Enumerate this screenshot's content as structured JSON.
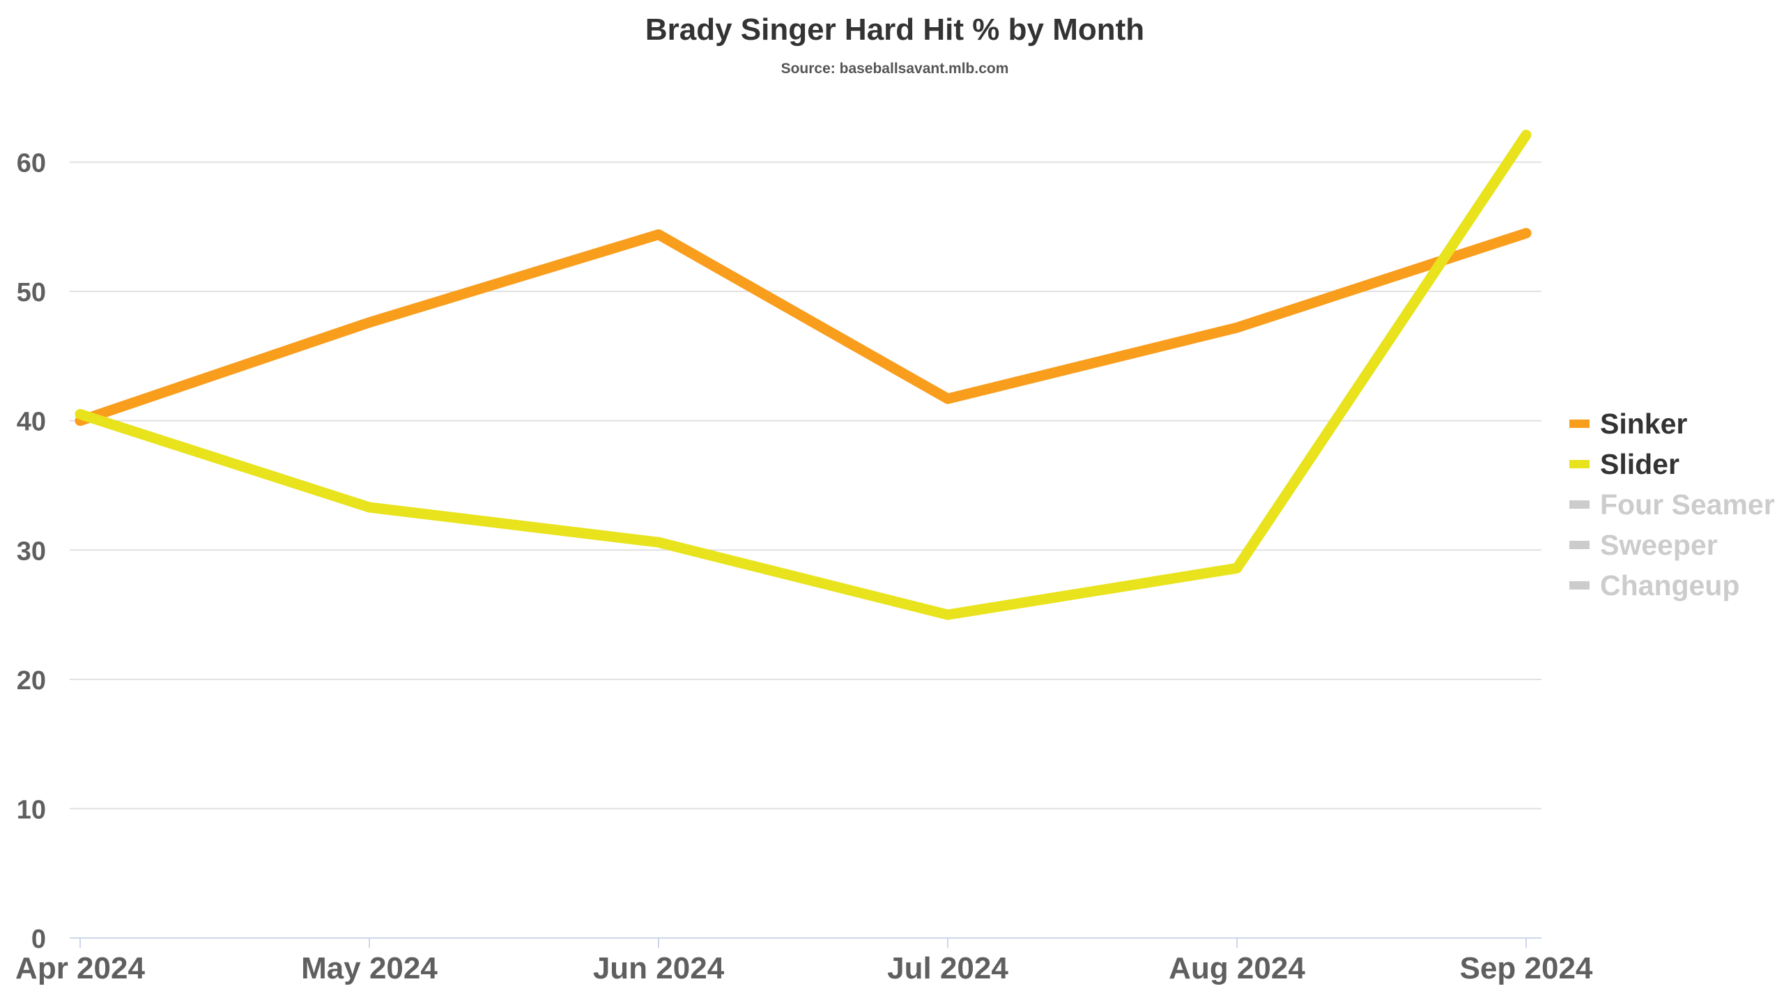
{
  "chart_data": {
    "type": "line",
    "title": "Brady Singer Hard Hit % by Month",
    "subtitle": "Source: baseballsavant.mlb.com",
    "xlabel": "",
    "ylabel": "",
    "categories": [
      "Apr 2024",
      "May 2024",
      "Jun 2024",
      "Jul 2024",
      "Aug 2024",
      "Sep 2024"
    ],
    "ylim": [
      0,
      70
    ],
    "yticks": [
      0,
      10,
      20,
      30,
      40,
      50,
      60
    ],
    "grid": true,
    "legend_position": "right",
    "series": [
      {
        "name": "Sinker",
        "color": "#f99d1c",
        "visible": true,
        "values": [
          40.0,
          47.6,
          54.4,
          41.7,
          47.2,
          54.5
        ]
      },
      {
        "name": "Slider",
        "color": "#e8e31c",
        "visible": true,
        "values": [
          40.5,
          33.3,
          30.6,
          25.0,
          28.6,
          62.1
        ]
      }
    ],
    "legend": [
      {
        "name": "Sinker",
        "color": "#f99d1c",
        "active": true
      },
      {
        "name": "Slider",
        "color": "#e8e31c",
        "active": true
      },
      {
        "name": "Four Seamer",
        "color": "#cccccc",
        "active": false
      },
      {
        "name": "Sweeper",
        "color": "#cccccc",
        "active": false
      },
      {
        "name": "Changeup",
        "color": "#cccccc",
        "active": false
      }
    ],
    "colors": {
      "grid": "#e0e0e0",
      "axis": "#ccd6eb",
      "tick_text": "#5f5f5f",
      "legend_active_text": "#333333",
      "legend_inactive_text": "#cccccc"
    }
  }
}
